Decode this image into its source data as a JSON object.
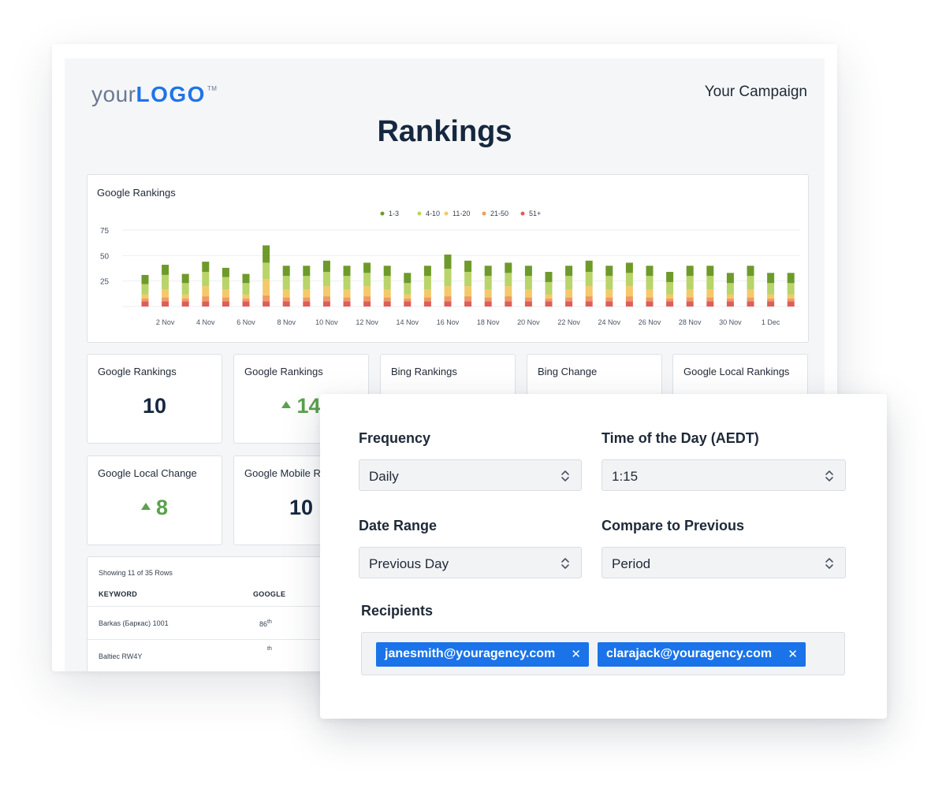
{
  "report": {
    "logo": {
      "prefix": "your",
      "brand": "LOGO",
      "tm": "TM"
    },
    "campaign": "Your Campaign",
    "title": "Rankings"
  },
  "chart_data": {
    "type": "bar",
    "title": "Google Rankings",
    "legend": [
      "1-3",
      "4-10",
      "11-20",
      "21-50",
      "51+"
    ],
    "legend_position": "top",
    "colors": {
      "1-3": "#6e9a2b",
      "4-10": "#b8d46a",
      "11-20": "#f4c96b",
      "21-50": "#ef9c62",
      "51+": "#de5d5d"
    },
    "x_tick_labels": [
      "2 Nov",
      "4 Nov",
      "6 Nov",
      "8 Nov",
      "10 Nov",
      "12 Nov",
      "14 Nov",
      "16 Nov",
      "18 Nov",
      "20 Nov",
      "22 Nov",
      "24 Nov",
      "26 Nov",
      "28 Nov",
      "30 Nov",
      "1 Dec"
    ],
    "y_ticks": [
      25,
      50,
      75
    ],
    "ylim": [
      0,
      75
    ],
    "grid": true,
    "categories": [
      "1 Nov",
      "2 Nov",
      "3 Nov",
      "4 Nov",
      "5 Nov",
      "6 Nov",
      "7 Nov",
      "8 Nov",
      "9 Nov",
      "10 Nov",
      "11 Nov",
      "12 Nov",
      "13 Nov",
      "14 Nov",
      "15 Nov",
      "16 Nov",
      "17 Nov",
      "18 Nov",
      "19 Nov",
      "20 Nov",
      "21 Nov",
      "22 Nov",
      "23 Nov",
      "24 Nov",
      "25 Nov",
      "26 Nov",
      "27 Nov",
      "28 Nov",
      "29 Nov",
      "30 Nov",
      "1 Dec",
      "2 Dec",
      "3 Dec"
    ],
    "series": [
      {
        "name": "51+",
        "values": [
          5,
          5,
          5,
          5,
          5,
          5,
          5,
          5,
          5,
          5,
          5,
          5,
          5,
          5,
          5,
          5,
          5,
          5,
          5,
          5,
          5,
          5,
          5,
          5,
          5,
          5,
          5,
          5,
          5,
          5,
          5,
          5,
          5
        ]
      },
      {
        "name": "21-50",
        "values": [
          3,
          4,
          3,
          5,
          4,
          3,
          6,
          4,
          4,
          5,
          4,
          5,
          4,
          3,
          4,
          5,
          5,
          4,
          5,
          4,
          3,
          4,
          5,
          4,
          5,
          4,
          3,
          4,
          4,
          3,
          4,
          3,
          3
        ]
      },
      {
        "name": "11-20",
        "values": [
          4,
          8,
          4,
          10,
          8,
          4,
          16,
          8,
          8,
          10,
          8,
          10,
          8,
          4,
          8,
          10,
          10,
          8,
          10,
          8,
          4,
          8,
          10,
          8,
          10,
          8,
          4,
          8,
          8,
          4,
          8,
          4,
          4
        ]
      },
      {
        "name": "4-10",
        "values": [
          10,
          14,
          11,
          14,
          12,
          11,
          16,
          13,
          13,
          14,
          13,
          13,
          13,
          11,
          13,
          17,
          14,
          13,
          13,
          13,
          12,
          13,
          14,
          13,
          13,
          13,
          12,
          13,
          13,
          11,
          13,
          11,
          11
        ]
      },
      {
        "name": "1-3",
        "values": [
          9,
          10,
          9,
          10,
          9,
          9,
          17,
          10,
          10,
          11,
          10,
          10,
          10,
          10,
          10,
          14,
          11,
          10,
          10,
          10,
          10,
          10,
          11,
          10,
          10,
          10,
          10,
          10,
          10,
          10,
          10,
          10,
          10
        ]
      }
    ]
  },
  "metrics": [
    {
      "label": "Google Rankings",
      "value": "10",
      "trend": ""
    },
    {
      "label": "Google Rankings",
      "value": "14",
      "trend": "up"
    },
    {
      "label": "Bing Rankings",
      "value": "",
      "trend": ""
    },
    {
      "label": "Bing Change",
      "value": "",
      "trend": ""
    },
    {
      "label": "Google Local Rankings",
      "value": "",
      "trend": ""
    },
    {
      "label": "Google Local Change",
      "value": "8",
      "trend": "up"
    },
    {
      "label": "Google Mobile Rankings",
      "value": "10",
      "trend": ""
    }
  ],
  "table": {
    "caption": "Showing 11 of 35 Rows",
    "headers": {
      "keyword": "KEYWORD",
      "google": "GOOGLE"
    },
    "rows": [
      {
        "keyword": "Barkas (Баркас) 1001",
        "google": "86",
        "suffix": "th"
      },
      {
        "keyword": "Baltiec RW4Y",
        "google": "",
        "suffix": "th"
      }
    ]
  },
  "settings": {
    "frequency": {
      "label": "Frequency",
      "value": "Daily"
    },
    "time": {
      "label": "Time of the Day (AEDT)",
      "value": "1:15"
    },
    "date_range": {
      "label": "Date Range",
      "value": "Previous Day"
    },
    "compare": {
      "label": "Compare to Previous",
      "value": "Period"
    },
    "recipients": {
      "label": "Recipients",
      "items": [
        "janesmith@youragency.com",
        "clarajack@youragency.com"
      ],
      "remove_glyph": "✕"
    }
  }
}
